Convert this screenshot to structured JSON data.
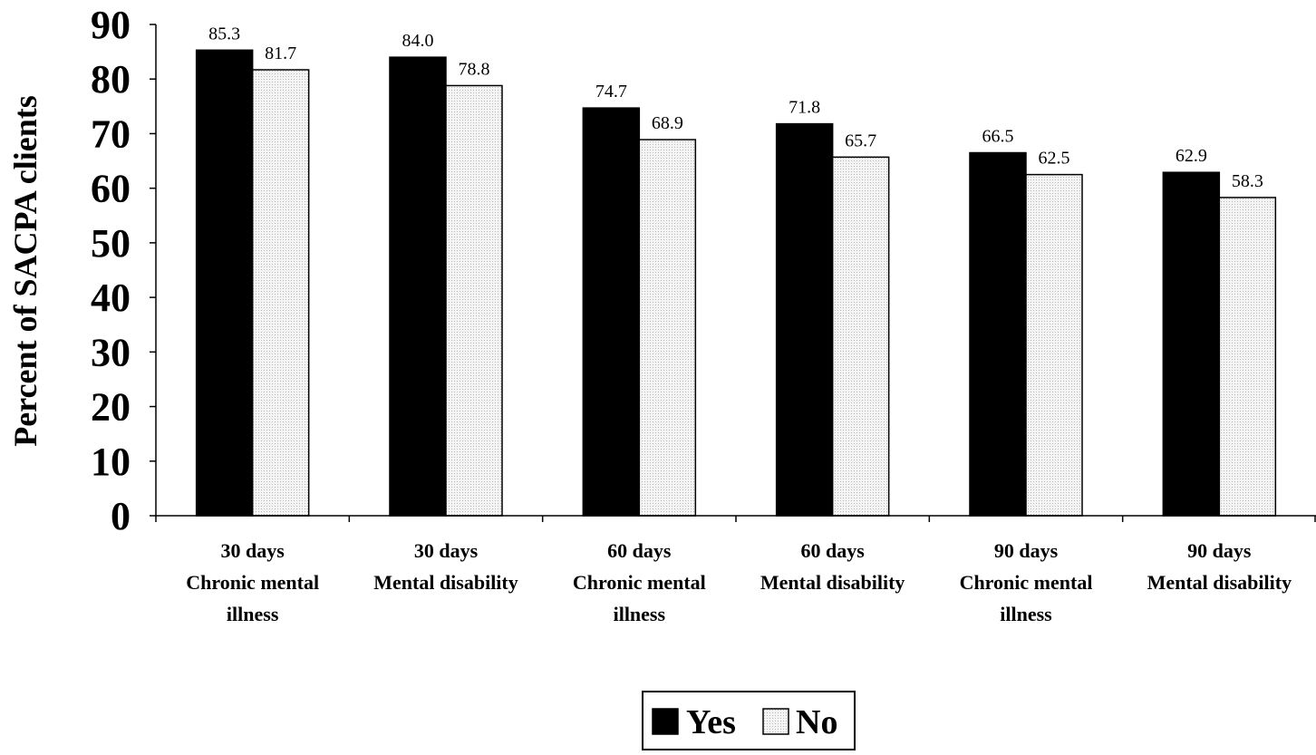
{
  "chart_data": {
    "type": "bar",
    "ylabel": "Percent of SACPA clients",
    "xlabel": "",
    "ylim": [
      0,
      90
    ],
    "yticks": [
      0,
      10,
      20,
      30,
      40,
      50,
      60,
      70,
      80,
      90
    ],
    "categories": [
      [
        "30 days",
        "Chronic mental",
        "illness"
      ],
      [
        "30 days",
        "Mental disability"
      ],
      [
        "60 days",
        "Chronic mental",
        "illness"
      ],
      [
        "60 days",
        "Mental disability"
      ],
      [
        "90 days",
        "Chronic mental",
        "illness"
      ],
      [
        "90 days",
        "Mental disability"
      ]
    ],
    "series": [
      {
        "name": "Yes",
        "values": [
          85.3,
          84.0,
          74.7,
          71.8,
          66.5,
          62.9
        ],
        "color": "#000000"
      },
      {
        "name": "No",
        "values": [
          81.7,
          78.8,
          68.9,
          65.7,
          62.5,
          58.3
        ],
        "color": "#f2f2f2"
      }
    ],
    "data_labels": [
      [
        "85.3",
        "84.0",
        "74.7",
        "71.8",
        "66.5",
        "62.9"
      ],
      [
        "81.7",
        "78.8",
        "68.9",
        "65.7",
        "62.5",
        "58.3"
      ]
    ],
    "legend_position": "bottom-center",
    "grid": false
  }
}
